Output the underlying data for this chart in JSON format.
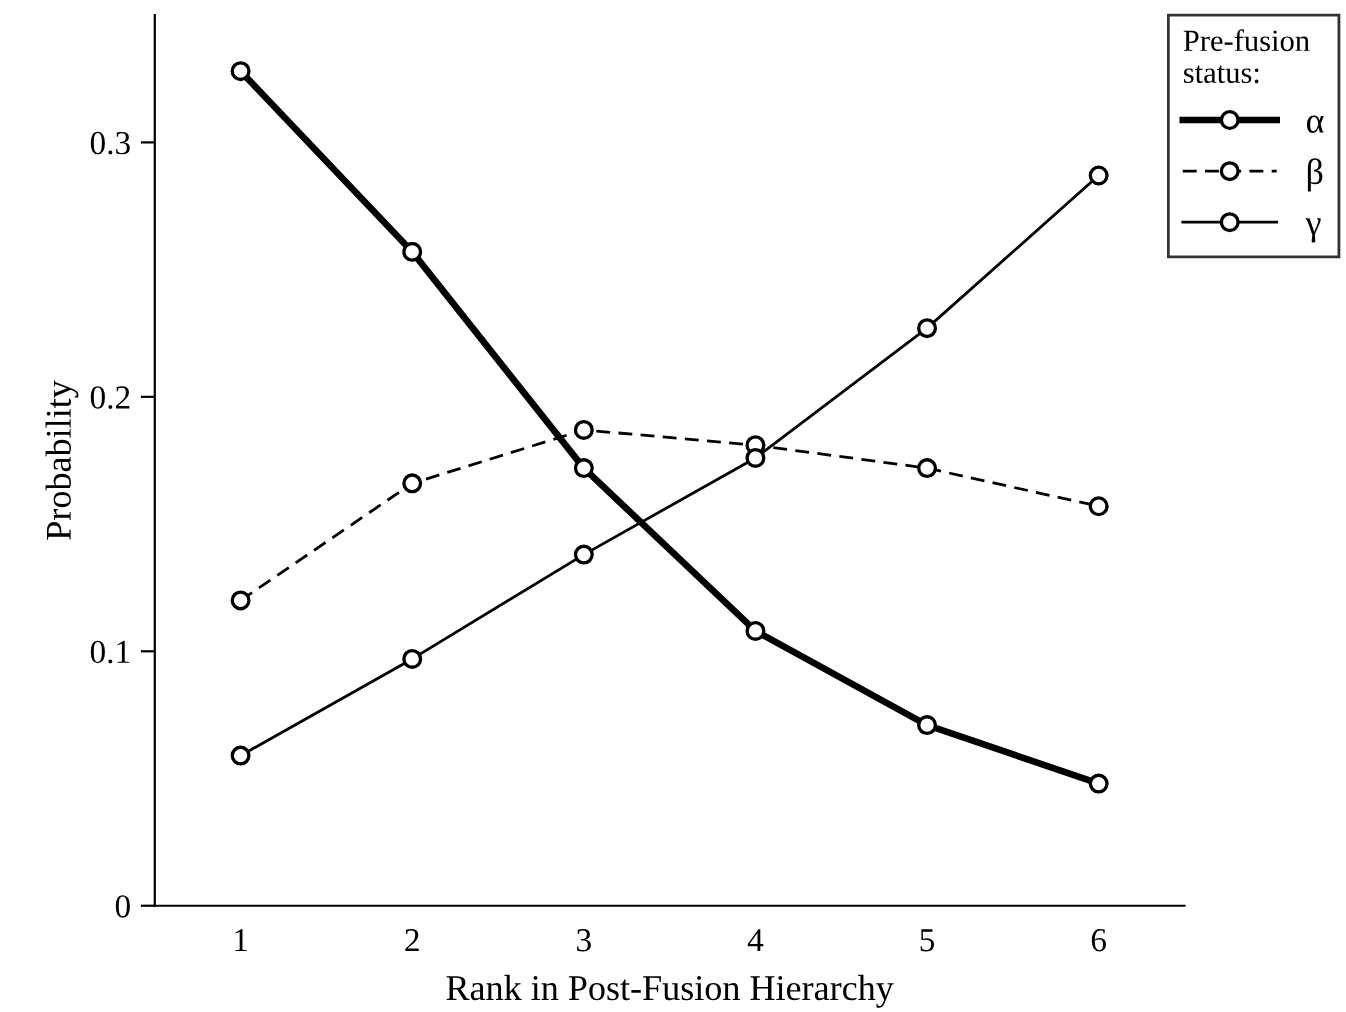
{
  "chart_data": {
    "type": "line",
    "xlabel": "Rank in Post-Fusion Hierarchy",
    "ylabel": "Probability",
    "legend_title": "Pre-fusion\nstatus:",
    "x": [
      1,
      2,
      3,
      4,
      5,
      6
    ],
    "xlim": [
      0.5,
      6.5
    ],
    "xticks": [
      1,
      2,
      3,
      4,
      5,
      6
    ],
    "ylim": [
      0,
      0.35
    ],
    "yticks": [
      0,
      0.1,
      0.2,
      0.3
    ],
    "marker": "circle",
    "legend": "top right",
    "grid": false,
    "series": [
      {
        "name": "α",
        "color": "#000000",
        "line_style": "solid",
        "values": [
          0.328,
          0.257,
          0.172,
          0.108,
          0.071,
          0.048
        ]
      },
      {
        "name": "β",
        "color": "#000000",
        "line_style": "dashed",
        "values": [
          0.12,
          0.166,
          0.187,
          0.181,
          0.172,
          0.157
        ]
      },
      {
        "name": "γ",
        "color": "#000000",
        "line_style": "solid",
        "values": [
          0.059,
          0.097,
          0.138,
          0.176,
          0.227,
          0.287
        ]
      }
    ]
  }
}
